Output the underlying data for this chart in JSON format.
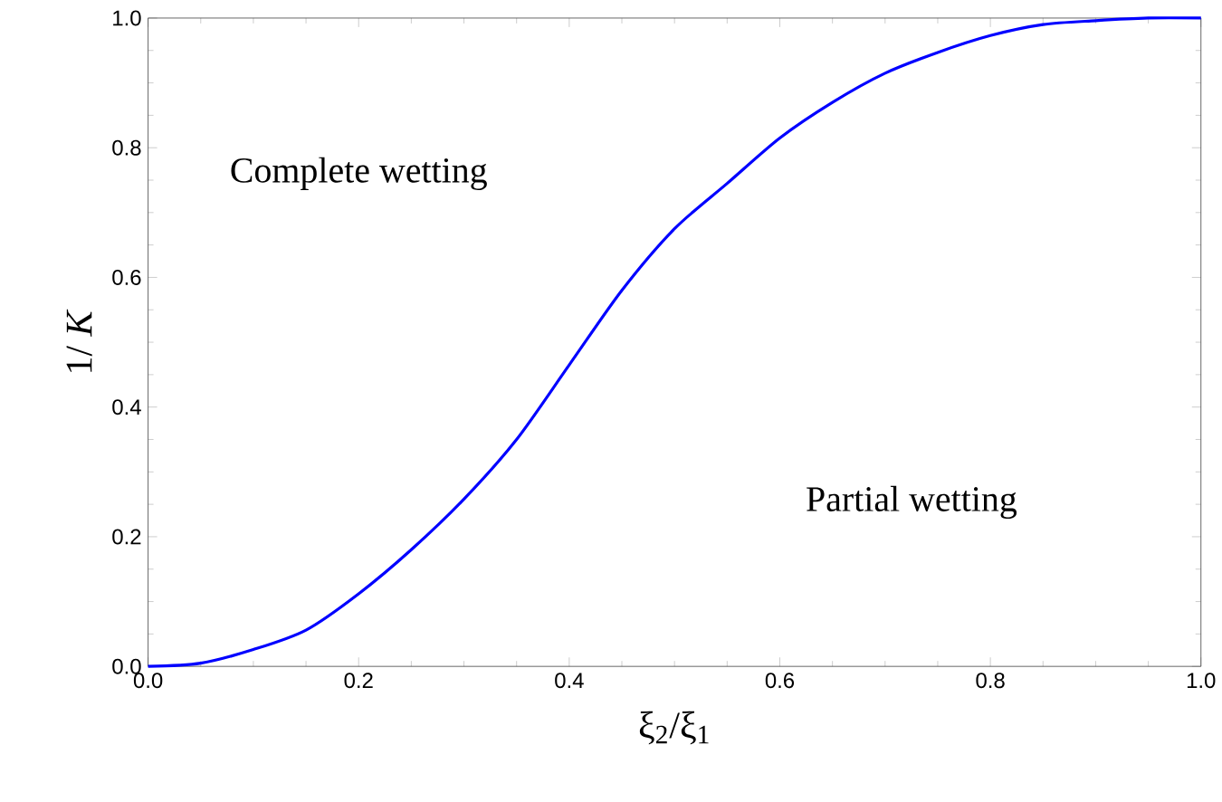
{
  "chart_data": {
    "type": "line",
    "xlabel": "ξ$_{2}$/ξ$_{1}$",
    "ylabel": "1/ *K*",
    "x": [
      0,
      0.05,
      0.1,
      0.15,
      0.2,
      0.25,
      0.3,
      0.35,
      0.4,
      0.45,
      0.5,
      0.55,
      0.6,
      0.65,
      0.7,
      0.75,
      0.8,
      0.85,
      0.9,
      0.95,
      1.0
    ],
    "series": [
      {
        "color": "#0000ff",
        "values": [
          0,
          0.005,
          0.026,
          0.056,
          0.112,
          0.18,
          0.258,
          0.35,
          0.465,
          0.58,
          0.675,
          0.745,
          0.815,
          0.87,
          0.915,
          0.947,
          0.973,
          0.99,
          0.996,
          1.0,
          1.0
        ]
      }
    ],
    "xlim": [
      0,
      1
    ],
    "ylim": [
      0,
      1
    ],
    "xticks": [
      {
        "value": 0,
        "label": "0.0"
      },
      0.2,
      0.4,
      0.6,
      0.8,
      {
        "value": 1,
        "label": "1.0"
      }
    ],
    "yticks": [
      {
        "value": 0,
        "label": "0.0"
      },
      0.2,
      0.4,
      0.6,
      0.8,
      {
        "value": 1,
        "label": "1.0"
      }
    ],
    "annotations": [
      "Complete wetting",
      "Partial wetting"
    ],
    "grid": false,
    "marker": "none",
    "line_style": "solid"
  }
}
